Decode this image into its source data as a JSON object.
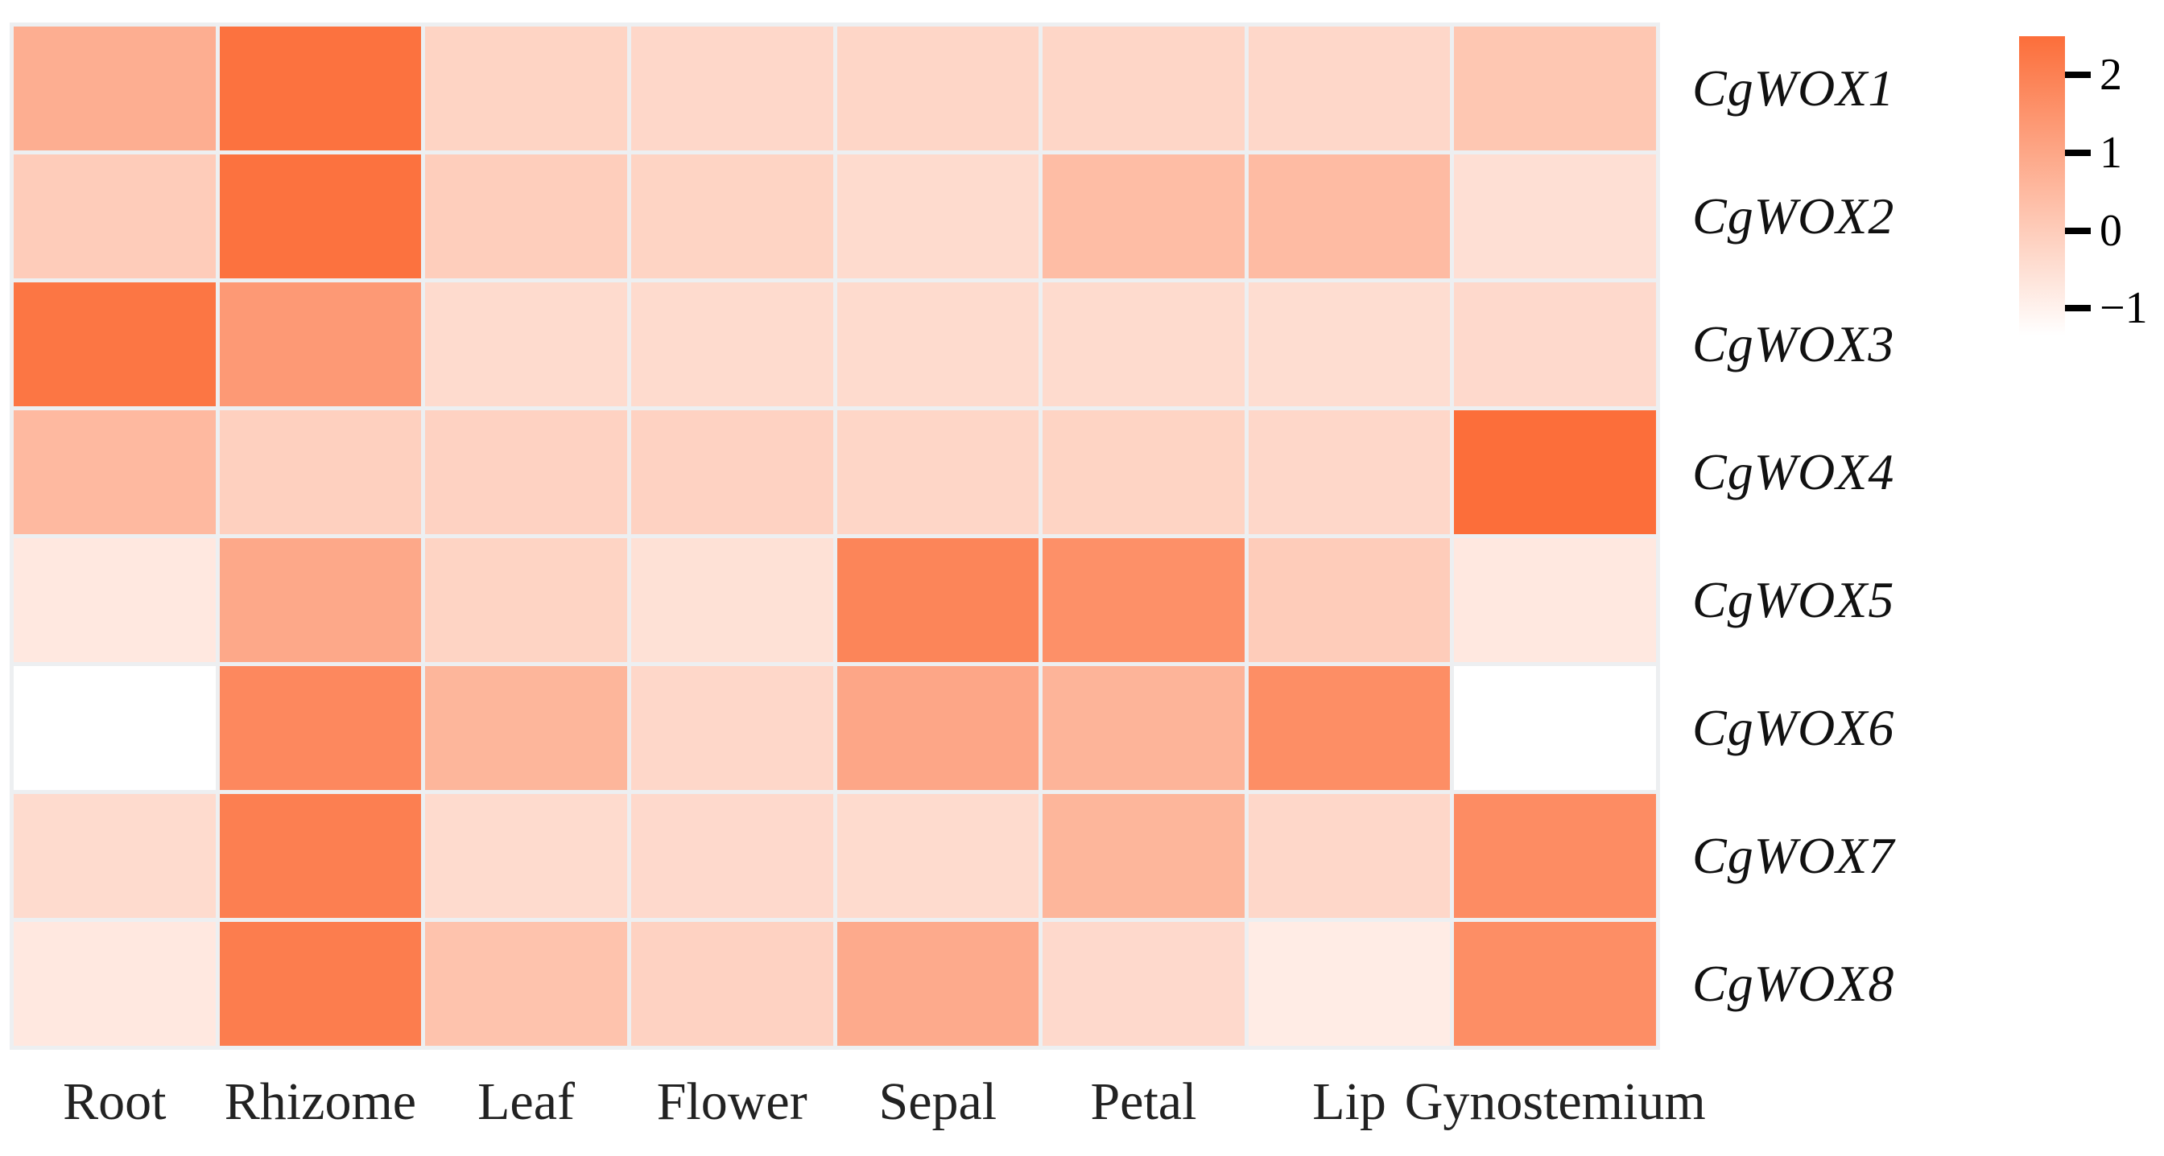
{
  "chart_data": {
    "type": "heatmap",
    "title": "",
    "xlabel": "",
    "ylabel": "",
    "columns": [
      "Root",
      "Rhizome",
      "Leaf",
      "Flower",
      "Sepal",
      "Petal",
      "Lip",
      "Gynostemium"
    ],
    "rows": [
      "CgWOX1",
      "CgWOX2",
      "CgWOX3",
      "CgWOX4",
      "CgWOX5",
      "CgWOX6",
      "CgWOX7",
      "CgWOX8"
    ],
    "series": [
      {
        "name": "CgWOX1",
        "values": [
          0.8,
          2.4,
          -0.2,
          -0.3,
          -0.25,
          -0.25,
          -0.3,
          0.15
        ]
      },
      {
        "name": "CgWOX2",
        "values": [
          0.0,
          2.4,
          -0.05,
          -0.2,
          -0.4,
          0.4,
          0.45,
          -0.5
        ]
      },
      {
        "name": "CgWOX3",
        "values": [
          2.3,
          1.35,
          -0.4,
          -0.4,
          -0.4,
          -0.4,
          -0.45,
          -0.35
        ]
      },
      {
        "name": "CgWOX4",
        "values": [
          0.5,
          -0.1,
          -0.15,
          -0.15,
          -0.25,
          -0.2,
          -0.3,
          2.5
        ]
      },
      {
        "name": "CgWOX5",
        "values": [
          -0.75,
          0.95,
          -0.2,
          -0.55,
          1.9,
          1.6,
          0.0,
          -0.75
        ]
      },
      {
        "name": "CgWOX6",
        "values": [
          -1.35,
          1.8,
          0.6,
          -0.3,
          1.0,
          0.65,
          1.65,
          -1.35
        ]
      },
      {
        "name": "CgWOX7",
        "values": [
          -0.4,
          2.05,
          -0.4,
          -0.35,
          -0.4,
          0.6,
          -0.3,
          1.7
        ]
      },
      {
        "name": "CgWOX8",
        "values": [
          -0.75,
          2.1,
          0.25,
          -0.15,
          0.9,
          -0.35,
          -0.85,
          1.65
        ]
      }
    ],
    "colorbar": {
      "ticks": [
        {
          "label": "2",
          "value": 2
        },
        {
          "label": "1",
          "value": 1
        },
        {
          "label": "0",
          "value": 0
        },
        {
          "label": "−1",
          "value": -1
        }
      ],
      "vmin": -1.35,
      "vmax": 2.5,
      "min_color": "#ffffff",
      "max_color": "#fc6e3a",
      "position": "top-right"
    },
    "grid_line_color": "#edeff1",
    "background": "#ffffff",
    "legend_position": "top-right",
    "grid": "gaps-between-cells"
  }
}
